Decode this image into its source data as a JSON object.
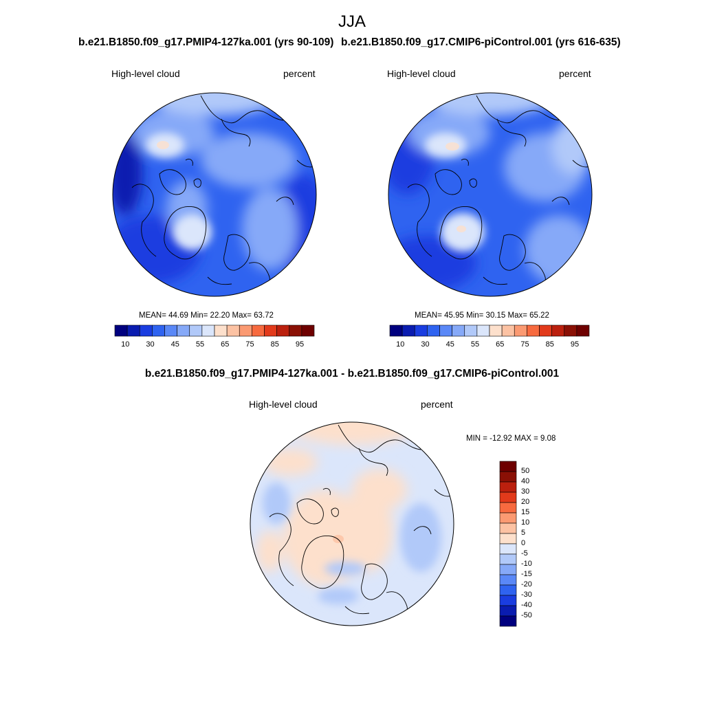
{
  "figure": {
    "title": "JJA"
  },
  "panels": {
    "left": {
      "case_title": "b.e21.B1850.f09_g17.PMIP4-127ka.001 (yrs 90-109)",
      "field_label": "High-level cloud",
      "units_label": "percent",
      "stats_text": "MEAN=  44.69  Min=  22.20  Max=  63.72",
      "colorbar_ticks": [
        "10",
        "30",
        "45",
        "55",
        "65",
        "75",
        "85",
        "95"
      ]
    },
    "right": {
      "case_title": "b.e21.B1850.f09_g17.CMIP6-piControl.001 (yrs 616-635)",
      "field_label": "High-level cloud",
      "units_label": "percent",
      "stats_text": "MEAN=  45.95  Min=  30.15  Max=  65.22",
      "colorbar_ticks": [
        "10",
        "30",
        "45",
        "55",
        "65",
        "75",
        "85",
        "95"
      ]
    },
    "diff": {
      "case_title": "b.e21.B1850.f09_g17.PMIP4-127ka.001 - b.e21.B1850.f09_g17.CMIP6-piControl.001",
      "field_label": "High-level cloud",
      "units_label": "percent",
      "stats_text": "MIN = -12.92 MAX =   9.08",
      "colorbar_ticks": [
        "50",
        "40",
        "30",
        "20",
        "15",
        "10",
        "5",
        "0",
        "-5",
        "-10",
        "-15",
        "-20",
        "-30",
        "-40",
        "-50"
      ]
    }
  },
  "chart_data": [
    {
      "type": "heatmap",
      "title": "b.e21.B1850.f09_g17.PMIP4-127ka.001 (yrs 90-109)",
      "subtitle": "High-level cloud",
      "units": "percent",
      "projection": "north polar stereographic",
      "season": "JJA",
      "mean": 44.69,
      "min": 22.2,
      "max": 63.72,
      "levels": [
        10,
        20,
        30,
        40,
        45,
        50,
        55,
        60,
        65,
        70,
        75,
        80,
        85,
        90,
        95
      ],
      "colors": [
        "#00007f",
        "#0a1cb0",
        "#1a3de0",
        "#2f63f0",
        "#5a88f7",
        "#86a9f8",
        "#b1c9f9",
        "#dbe6fb",
        "#fde0cc",
        "#fcc2a3",
        "#fb9a72",
        "#f76a3f",
        "#e23a1b",
        "#bb200e",
        "#8a1005",
        "#6e0000"
      ]
    },
    {
      "type": "heatmap",
      "title": "b.e21.B1850.f09_g17.CMIP6-piControl.001 (yrs 616-635)",
      "subtitle": "High-level cloud",
      "units": "percent",
      "projection": "north polar stereographic",
      "season": "JJA",
      "mean": 45.95,
      "min": 30.15,
      "max": 65.22,
      "levels": [
        10,
        20,
        30,
        40,
        45,
        50,
        55,
        60,
        65,
        70,
        75,
        80,
        85,
        90,
        95
      ],
      "colors": [
        "#00007f",
        "#0a1cb0",
        "#1a3de0",
        "#2f63f0",
        "#5a88f7",
        "#86a9f8",
        "#b1c9f9",
        "#dbe6fb",
        "#fde0cc",
        "#fcc2a3",
        "#fb9a72",
        "#f76a3f",
        "#e23a1b",
        "#bb200e",
        "#8a1005",
        "#6e0000"
      ]
    },
    {
      "type": "heatmap",
      "title": "b.e21.B1850.f09_g17.PMIP4-127ka.001 - b.e21.B1850.f09_g17.CMIP6-piControl.001",
      "subtitle": "High-level cloud",
      "units": "percent",
      "projection": "north polar stereographic",
      "season": "JJA",
      "min": -12.92,
      "max": 9.08,
      "levels": [
        -50,
        -40,
        -30,
        -20,
        -15,
        -10,
        -5,
        0,
        5,
        10,
        15,
        20,
        30,
        40,
        50
      ],
      "colors": [
        "#00007f",
        "#0a1cb0",
        "#1a3de0",
        "#2f63f0",
        "#5a88f7",
        "#86a9f8",
        "#b1c9f9",
        "#dbe6fb",
        "#fde0cc",
        "#fcc2a3",
        "#fb9a72",
        "#f76a3f",
        "#e23a1b",
        "#bb200e",
        "#8a1005",
        "#6e0000"
      ]
    }
  ]
}
